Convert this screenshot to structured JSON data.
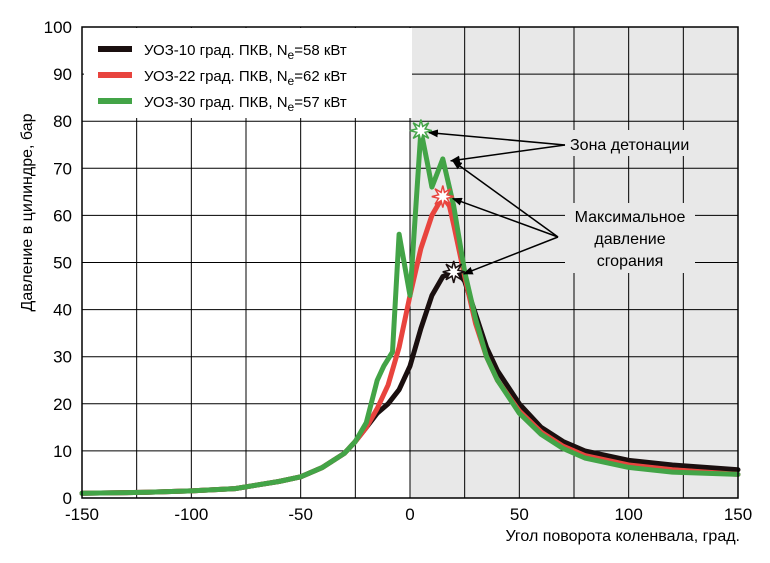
{
  "chart_data": {
    "type": "line",
    "xlabel": "Угол поворота коленвала, град.",
    "ylabel": "Давление в цилиндре, бар",
    "xlim": [
      -150,
      150
    ],
    "ylim": [
      0,
      100
    ],
    "x_ticks": [
      "-150",
      "-100",
      "-50",
      "0",
      "50",
      "100",
      "150"
    ],
    "y_ticks": [
      "0",
      "10",
      "20",
      "30",
      "40",
      "50",
      "60",
      "70",
      "80",
      "90",
      "100"
    ],
    "grid": true,
    "legend_position": "top-left",
    "series": [
      {
        "name": "УОЗ-10 град. ПКВ, Ne=58 кВт",
        "legend_main": "УОЗ-10 град. ПКВ, N",
        "legend_sub": "e",
        "legend_tail": "=58 кВт",
        "color": "#1a0f0f",
        "x": [
          -150,
          -120,
          -100,
          -80,
          -60,
          -50,
          -40,
          -30,
          -25,
          -20,
          -15,
          -10,
          -5,
          0,
          5,
          10,
          15,
          20,
          22,
          25,
          30,
          35,
          40,
          50,
          60,
          70,
          80,
          100,
          120,
          150
        ],
        "y": [
          1,
          1.2,
          1.5,
          2,
          3.5,
          4.5,
          6.5,
          9.5,
          12,
          15,
          18,
          20,
          23,
          28,
          36,
          43,
          47,
          48,
          48,
          46,
          39,
          32,
          27,
          20,
          15,
          12,
          10,
          8,
          7,
          6
        ]
      },
      {
        "name": "УОЗ-22 град. ПКВ, Ne=62 кВт",
        "legend_main": "УОЗ-22 град. ПКВ, N",
        "legend_sub": "e",
        "legend_tail": "=62 кВт",
        "color": "#e8443e",
        "x": [
          -150,
          -120,
          -100,
          -80,
          -60,
          -50,
          -40,
          -30,
          -25,
          -20,
          -15,
          -10,
          -5,
          0,
          5,
          10,
          15,
          18,
          20,
          25,
          30,
          35,
          40,
          50,
          60,
          70,
          80,
          100,
          120,
          150
        ],
        "y": [
          1,
          1.2,
          1.5,
          2,
          3.5,
          4.5,
          6.5,
          9.5,
          12,
          15,
          19,
          24,
          32,
          43,
          53,
          60,
          64,
          62,
          58,
          47,
          37,
          30,
          25,
          18.5,
          14,
          11,
          9,
          7,
          6,
          5
        ]
      },
      {
        "name": "УОЗ-30 град. ПКВ, Ne=57 кВт",
        "legend_main": "УОЗ-30 град. ПКВ, N",
        "legend_sub": "e",
        "legend_tail": "=57 кВт",
        "color": "#43a447",
        "x": [
          -150,
          -120,
          -100,
          -80,
          -60,
          -50,
          -40,
          -30,
          -25,
          -20,
          -15,
          -12,
          -8,
          -5,
          0,
          5,
          8,
          10,
          15,
          20,
          25,
          30,
          35,
          40,
          50,
          60,
          70,
          80,
          100,
          120,
          150
        ],
        "y": [
          1,
          1.2,
          1.5,
          2,
          3.5,
          4.5,
          6.5,
          9.5,
          12,
          16,
          25,
          28,
          31,
          56,
          43,
          78,
          71,
          66,
          72,
          62,
          48,
          38,
          30,
          25,
          18,
          13.5,
          10.5,
          8.5,
          6.5,
          5.5,
          5
        ]
      }
    ],
    "markers": [
      {
        "name": "peak-star-green",
        "x": 5,
        "y": 78,
        "color": "#ffffff",
        "stroke": "#43a447"
      },
      {
        "name": "peak-star-red",
        "x": 15,
        "y": 64,
        "color": "#ffffff",
        "stroke": "#e8443e"
      },
      {
        "name": "peak-star-black",
        "x": 20,
        "y": 48,
        "color": "#ffffff",
        "stroke": "#1a0f0f"
      }
    ],
    "annotations": [
      {
        "name": "annotation-knock-zone",
        "text": [
          "Зона детонации"
        ],
        "targets": [
          [
            5,
            78
          ],
          [
            15,
            72
          ]
        ]
      },
      {
        "name": "annotation-max-pressure",
        "text": [
          "Максимальное",
          "давление",
          "сгорания"
        ],
        "targets": [
          [
            15,
            64
          ],
          [
            20,
            48
          ],
          [
            15,
            72
          ]
        ]
      }
    ],
    "colors": {
      "plot_left": "#ffffff",
      "plot_right": "#e8e8e8",
      "grid": "#000000"
    }
  }
}
